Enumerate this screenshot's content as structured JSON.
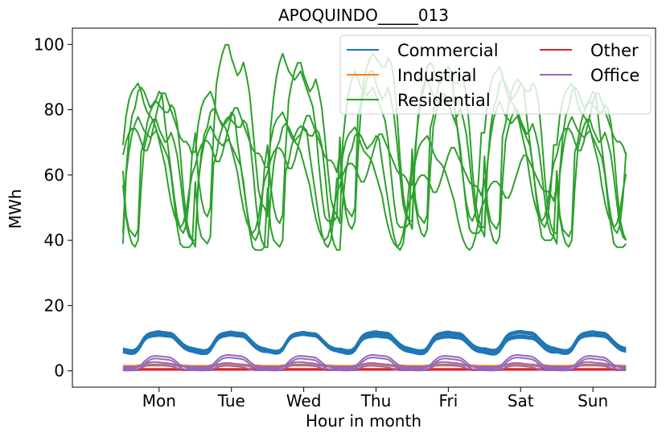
{
  "chart_data": {
    "type": "line",
    "title": "APOQUINDO_____013",
    "xlabel": "Hour in month",
    "ylabel": "MWh",
    "xlim": [
      -16.8,
      176.8
    ],
    "ylim": [
      -5,
      105
    ],
    "yticks": [
      0,
      20,
      40,
      60,
      80,
      100
    ],
    "xtick_positions": [
      12,
      36,
      60,
      84,
      108,
      132,
      156
    ],
    "xtick_labels": [
      "Mon",
      "Tue",
      "Wed",
      "Thu",
      "Fri",
      "Sat",
      "Sun"
    ],
    "grid": false,
    "legend": {
      "placement": "top-right",
      "columns": 2,
      "entries": [
        "Commercial",
        "Industrial",
        "Residential",
        "Other",
        "Office"
      ]
    },
    "series": [
      {
        "name": "Commercial",
        "color": "#1f77b4",
        "weeks": [
          [
            6.0,
            5.8,
            5.6,
            5.5,
            5.7,
            6.5,
            8.0,
            9.5,
            10.4,
            10.8,
            11.0,
            11.2,
            11.3,
            11.1,
            11.0,
            10.9,
            10.8,
            10.2,
            9.2,
            8.3,
            7.4,
            6.8,
            6.4,
            6.2
          ],
          [
            5.9,
            5.7,
            5.5,
            5.5,
            5.6,
            6.4,
            7.9,
            9.4,
            10.3,
            10.7,
            10.9,
            11.1,
            11.2,
            11.0,
            10.9,
            10.8,
            10.7,
            10.1,
            9.1,
            8.2,
            7.3,
            6.7,
            6.3,
            6.1
          ],
          [
            6.1,
            5.9,
            5.7,
            5.6,
            5.8,
            6.6,
            8.1,
            9.6,
            10.5,
            10.9,
            11.1,
            11.3,
            11.4,
            11.2,
            11.1,
            11.0,
            10.9,
            10.3,
            9.3,
            8.4,
            7.5,
            6.9,
            6.5,
            6.3
          ],
          [
            6.0,
            5.8,
            5.6,
            5.5,
            5.7,
            6.5,
            8.0,
            9.5,
            10.4,
            10.8,
            11.0,
            11.2,
            11.3,
            11.1,
            11.0,
            10.9,
            10.8,
            10.2,
            9.2,
            8.3,
            7.4,
            6.8,
            6.4,
            6.2
          ],
          [
            6.0,
            5.8,
            5.6,
            5.5,
            5.7,
            6.4,
            7.8,
            9.2,
            10.0,
            10.3,
            10.5,
            10.6,
            10.7,
            10.6,
            10.5,
            10.4,
            10.3,
            9.8,
            9.0,
            8.1,
            7.2,
            6.6,
            6.2,
            6.0
          ],
          [
            5.8,
            5.6,
            5.4,
            5.3,
            5.5,
            6.2,
            7.6,
            9.0,
            9.8,
            10.1,
            10.3,
            10.4,
            10.5,
            10.4,
            10.3,
            10.2,
            10.1,
            9.6,
            8.8,
            7.9,
            7.0,
            6.4,
            6.0,
            5.9
          ]
        ],
        "week_offsets": [
          0,
          -0.3,
          0.4,
          0.9,
          0.6,
          0.2,
          -0.4,
          0.7
        ]
      },
      {
        "name": "Industrial",
        "color": "#ff7f0e",
        "weeks": [
          [
            1.4,
            1.4,
            1.4,
            1.4,
            1.4,
            1.5,
            1.6,
            1.7,
            1.8,
            1.8,
            1.8,
            1.8,
            1.8,
            1.8,
            1.8,
            1.8,
            1.8,
            1.7,
            1.7,
            1.6,
            1.5,
            1.5,
            1.4,
            1.4
          ]
        ],
        "week_offsets": [
          0,
          -0.2,
          0.1,
          0.2
        ]
      },
      {
        "name": "Residential",
        "color": "#2ca02c",
        "weeks": [
          [
            57,
            47,
            42,
            39,
            38,
            40,
            56,
            68,
            72,
            75,
            77,
            77,
            74,
            72,
            70,
            71,
            73,
            70,
            66,
            59,
            51,
            44,
            41,
            40
          ],
          [
            38,
            58,
            65,
            70,
            73,
            75,
            73,
            71,
            70,
            69,
            70,
            71,
            69,
            67,
            65,
            63,
            58,
            50,
            43,
            38,
            37,
            37,
            37,
            38
          ],
          [
            56,
            44,
            40,
            39,
            38,
            40,
            61,
            64,
            69,
            72,
            74,
            75,
            74,
            73,
            72,
            72,
            74,
            73,
            69,
            61,
            51,
            43,
            39,
            37
          ],
          [
            37,
            52,
            61,
            66,
            68,
            72,
            73,
            72,
            70,
            68,
            69,
            70,
            72,
            71,
            64,
            58,
            52,
            46,
            41,
            38,
            37,
            39,
            46,
            57
          ],
          [
            57,
            64,
            68,
            70,
            71,
            72,
            70,
            67,
            65,
            64,
            63,
            61,
            58,
            55,
            52,
            47,
            43,
            40,
            38,
            37,
            38,
            41,
            46,
            50
          ],
          [
            52,
            55,
            57,
            58,
            58,
            57,
            55,
            53,
            53,
            55,
            58,
            61,
            64,
            66,
            66,
            64,
            62,
            60,
            58,
            56,
            55,
            55,
            54,
            52
          ]
        ],
        "week_offsets": [
          0,
          3.5,
          10.5,
          19.0,
          24.0,
          31.0
        ],
        "week_peak_scale": [
          1.0,
          1.05,
          1.12,
          1.24,
          1.26,
          1.35
        ]
      },
      {
        "name": "Other",
        "color": "#d62728",
        "weeks": [
          [
            0.3,
            0.3,
            0.3,
            0.3,
            0.3,
            0.3,
            0.4,
            0.4,
            0.4,
            0.4,
            0.4,
            0.4,
            0.4,
            0.4,
            0.4,
            0.4,
            0.4,
            0.4,
            0.4,
            0.4,
            0.3,
            0.3,
            0.3,
            0.3
          ]
        ],
        "week_offsets": [
          0,
          0.1,
          0.2,
          -0.1
        ]
      },
      {
        "name": "Office",
        "color": "#9467bd",
        "weeks": [
          [
            1.0,
            0.9,
            0.9,
            0.9,
            1.0,
            1.2,
            1.8,
            2.8,
            3.6,
            4.2,
            4.5,
            4.6,
            4.5,
            4.4,
            4.3,
            4.2,
            4.0,
            3.4,
            2.6,
            1.8,
            1.3,
            1.1,
            1.0,
            1.0
          ],
          [
            1.0,
            0.9,
            0.9,
            0.9,
            1.0,
            1.1,
            1.4,
            1.8,
            2.1,
            2.3,
            2.4,
            2.4,
            2.3,
            2.2,
            2.1,
            2.0,
            1.9,
            1.6,
            1.3,
            1.1,
            1.0,
            1.0,
            1.0,
            1.0
          ]
        ],
        "week_offsets": [
          0,
          -0.5,
          -0.8,
          0.3
        ]
      }
    ]
  }
}
